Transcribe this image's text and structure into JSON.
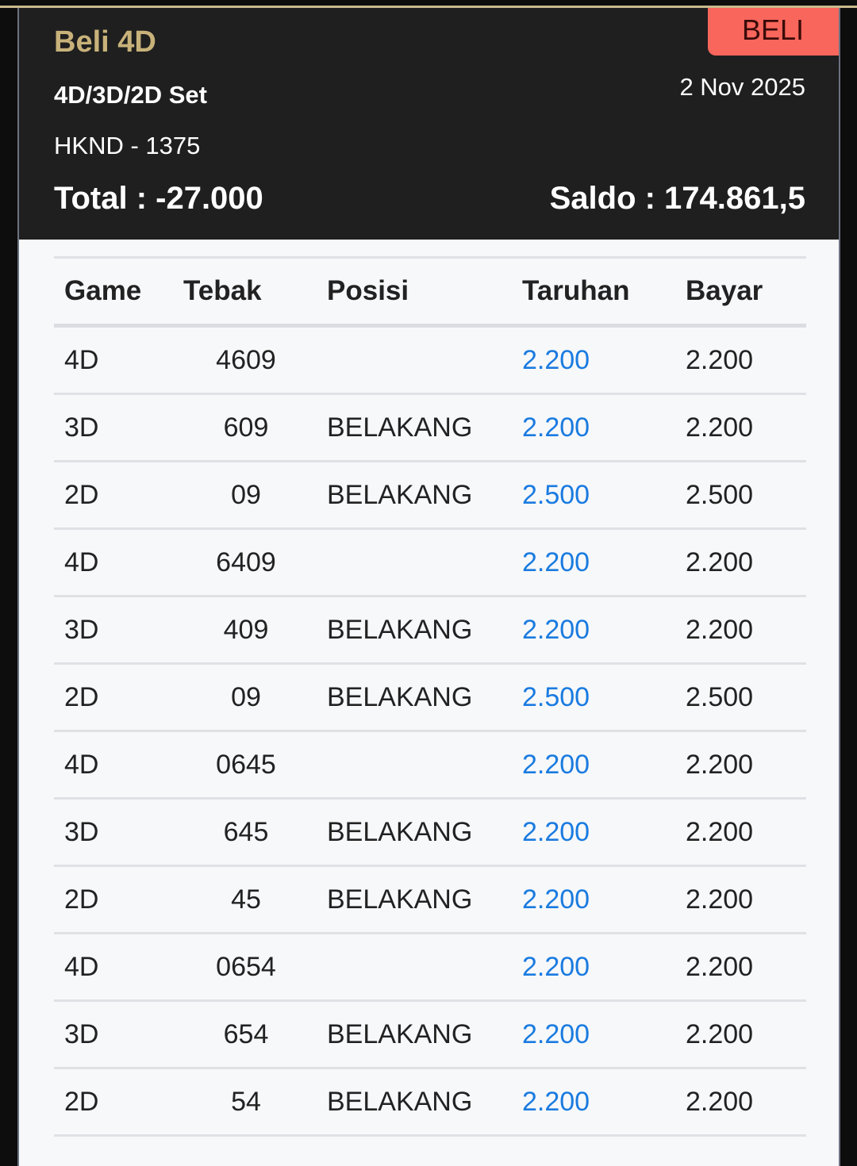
{
  "header": {
    "title": "Beli 4D",
    "badge": "BELI",
    "subtitle": "4D/3D/2D Set",
    "date": "2 Nov 2025",
    "market": "HKND - 1375",
    "total": "Total : -27.000",
    "saldo": "Saldo : 174.861,5"
  },
  "colors": {
    "title": "#c8b27a",
    "badge": "#f8665c",
    "link": "#1a7be0"
  },
  "table": {
    "columns": [
      "Game",
      "Tebak",
      "Posisi",
      "Taruhan",
      "Bayar"
    ],
    "rows": [
      {
        "game": "4D",
        "tebak": "4609",
        "posisi": "",
        "taruhan": "2.200",
        "bayar": "2.200"
      },
      {
        "game": "3D",
        "tebak": "609",
        "posisi": "BELAKANG",
        "taruhan": "2.200",
        "bayar": "2.200"
      },
      {
        "game": "2D",
        "tebak": "09",
        "posisi": "BELAKANG",
        "taruhan": "2.500",
        "bayar": "2.500"
      },
      {
        "game": "4D",
        "tebak": "6409",
        "posisi": "",
        "taruhan": "2.200",
        "bayar": "2.200"
      },
      {
        "game": "3D",
        "tebak": "409",
        "posisi": "BELAKANG",
        "taruhan": "2.200",
        "bayar": "2.200"
      },
      {
        "game": "2D",
        "tebak": "09",
        "posisi": "BELAKANG",
        "taruhan": "2.500",
        "bayar": "2.500"
      },
      {
        "game": "4D",
        "tebak": "0645",
        "posisi": "",
        "taruhan": "2.200",
        "bayar": "2.200"
      },
      {
        "game": "3D",
        "tebak": "645",
        "posisi": "BELAKANG",
        "taruhan": "2.200",
        "bayar": "2.200"
      },
      {
        "game": "2D",
        "tebak": "45",
        "posisi": "BELAKANG",
        "taruhan": "2.200",
        "bayar": "2.200"
      },
      {
        "game": "4D",
        "tebak": "0654",
        "posisi": "",
        "taruhan": "2.200",
        "bayar": "2.200"
      },
      {
        "game": "3D",
        "tebak": "654",
        "posisi": "BELAKANG",
        "taruhan": "2.200",
        "bayar": "2.200"
      },
      {
        "game": "2D",
        "tebak": "54",
        "posisi": "BELAKANG",
        "taruhan": "2.200",
        "bayar": "2.200"
      }
    ]
  }
}
